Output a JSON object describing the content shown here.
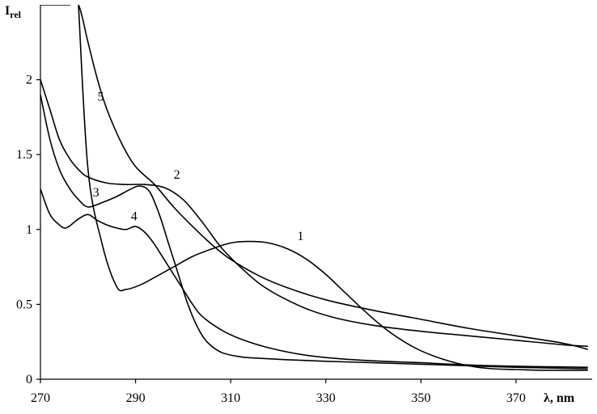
{
  "chart_data": {
    "type": "line",
    "title": "",
    "xlabel": "λ, nm",
    "ylabel_main": "I",
    "ylabel_sub": "rel",
    "xlim": [
      270,
      386
    ],
    "ylim": [
      0,
      2.5
    ],
    "xticks": [
      270,
      290,
      310,
      330,
      350,
      370
    ],
    "xtick_labels": [
      "270",
      "290",
      "310",
      "330",
      "350",
      "370"
    ],
    "yticks": [
      0,
      0.5,
      1,
      1.5,
      2
    ],
    "ytick_labels": [
      "0",
      "0.5",
      "1",
      "1.5",
      "2"
    ],
    "grid": false,
    "legend": "none",
    "series_color": "#000000",
    "series": [
      {
        "name": "1",
        "x": [
          278,
          280,
          283,
          286,
          288,
          291,
          294,
          298,
          302,
          306,
          310,
          314,
          318,
          322,
          326,
          330,
          334,
          338,
          342,
          346,
          350,
          355,
          360,
          365,
          370,
          375,
          380,
          385
        ],
        "y": [
          2.5,
          1.4,
          0.9,
          0.62,
          0.6,
          0.63,
          0.68,
          0.75,
          0.82,
          0.87,
          0.91,
          0.92,
          0.91,
          0.87,
          0.8,
          0.7,
          0.58,
          0.46,
          0.35,
          0.26,
          0.19,
          0.13,
          0.09,
          0.07,
          0.065,
          0.06,
          0.06,
          0.06
        ]
      },
      {
        "name": "2",
        "x": [
          270,
          272,
          274,
          276,
          278,
          280,
          284,
          288,
          292,
          296,
          300,
          304,
          308,
          312,
          316,
          320,
          326,
          332,
          340,
          350,
          360,
          370,
          380,
          385
        ],
        "y": [
          2.0,
          1.8,
          1.6,
          1.48,
          1.4,
          1.35,
          1.31,
          1.3,
          1.3,
          1.28,
          1.2,
          1.05,
          0.88,
          0.75,
          0.64,
          0.56,
          0.47,
          0.41,
          0.36,
          0.32,
          0.29,
          0.26,
          0.23,
          0.22
        ]
      },
      {
        "name": "3",
        "x": [
          270,
          272,
          274,
          276,
          278,
          280,
          283,
          286,
          289,
          291,
          293,
          295,
          297,
          299,
          301,
          303,
          305,
          308,
          312,
          316,
          322,
          330,
          340,
          350,
          360,
          370,
          385
        ],
        "y": [
          1.9,
          1.6,
          1.4,
          1.28,
          1.2,
          1.15,
          1.18,
          1.22,
          1.27,
          1.29,
          1.25,
          1.1,
          0.9,
          0.7,
          0.5,
          0.35,
          0.25,
          0.18,
          0.15,
          0.14,
          0.13,
          0.12,
          0.11,
          0.1,
          0.09,
          0.08,
          0.07
        ]
      },
      {
        "name": "4",
        "x": [
          270,
          272,
          274,
          275,
          276,
          278,
          280,
          282,
          284,
          286,
          288,
          290,
          292,
          294,
          296,
          298,
          300,
          302,
          304,
          308,
          312,
          318,
          326,
          336,
          350,
          365,
          385
        ],
        "y": [
          1.27,
          1.1,
          1.03,
          1.01,
          1.02,
          1.07,
          1.1,
          1.06,
          1.03,
          1.01,
          1.0,
          1.02,
          0.98,
          0.9,
          0.8,
          0.7,
          0.6,
          0.5,
          0.42,
          0.33,
          0.27,
          0.21,
          0.16,
          0.13,
          0.11,
          0.09,
          0.08
        ]
      },
      {
        "name": "5",
        "x": [
          270,
          272,
          274,
          276,
          278,
          280,
          282,
          284,
          287,
          290,
          294,
          298,
          302,
          306,
          310,
          316,
          322,
          330,
          340,
          350,
          360,
          370,
          380,
          385
        ],
        "y": [
          2.5,
          2.5,
          2.5,
          2.5,
          2.5,
          2.25,
          2.0,
          1.8,
          1.58,
          1.42,
          1.3,
          1.15,
          1.02,
          0.9,
          0.8,
          0.69,
          0.61,
          0.53,
          0.46,
          0.4,
          0.34,
          0.29,
          0.24,
          0.2
        ]
      }
    ],
    "curve_labels": [
      {
        "text": "1",
        "x": 324,
        "y": 0.93
      },
      {
        "text": "2",
        "x": 298,
        "y": 1.34
      },
      {
        "text": "3",
        "x": 281,
        "y": 1.22
      },
      {
        "text": "4",
        "x": 289,
        "y": 1.06
      },
      {
        "text": "5",
        "x": 282,
        "y": 1.86
      }
    ]
  }
}
